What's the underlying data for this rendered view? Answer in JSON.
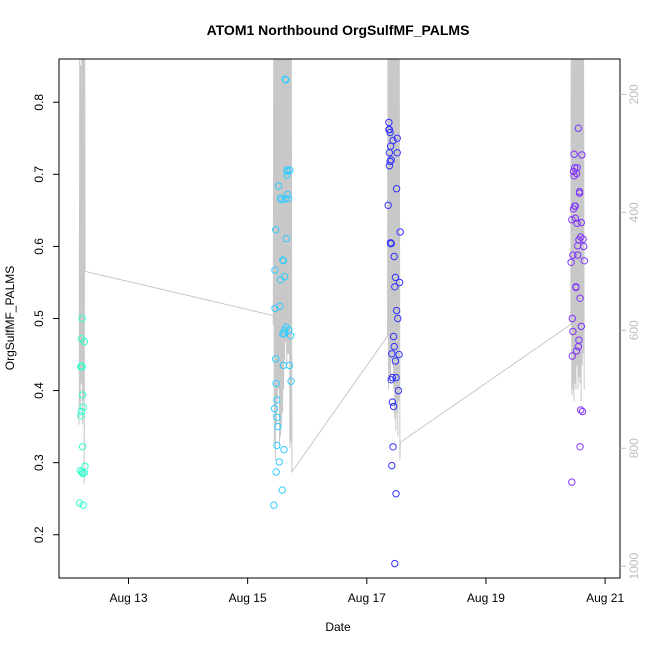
{
  "chart_data": {
    "type": "scatter",
    "title": "ATOM1 Northbound OrgSulfMF_PALMS",
    "xlabel": "Date",
    "ylabel": "OrgSulfMF_PALMS",
    "xlim": [
      "2016-08-11T20:00",
      "2016-08-21T06:00"
    ],
    "ylim": [
      0.14,
      0.86
    ],
    "y2lim": [
      1020,
      140
    ],
    "xticks": [
      {
        "label": "Aug 13",
        "value": "2016-08-13"
      },
      {
        "label": "Aug 15",
        "value": "2016-08-15"
      },
      {
        "label": "Aug 17",
        "value": "2016-08-17"
      },
      {
        "label": "Aug 19",
        "value": "2016-08-19"
      },
      {
        "label": "Aug 21",
        "value": "2016-08-21"
      }
    ],
    "yticks": [
      0.2,
      0.3,
      0.4,
      0.5,
      0.6,
      0.7,
      0.8
    ],
    "y2ticks": [
      200,
      400,
      600,
      800,
      1000
    ],
    "grid": false,
    "legend": "none",
    "colors": {
      "flight1": "#33ffcc",
      "flight2": "#33ccff",
      "flight3": "#3333ff",
      "flight4": "#8033ff",
      "altitude": "#c8c8c8"
    },
    "series": [
      {
        "key": "flight1",
        "x": [
          "2016-08-12T04:19",
          "2016-08-12T04:34",
          "2016-08-12T04:48",
          "2016-08-12T04:48",
          "2016-08-12T05:02",
          "2016-08-12T05:02",
          "2016-08-12T05:02",
          "2016-08-12T05:17",
          "2016-08-12T05:17",
          "2016-08-12T05:17",
          "2016-08-12T05:31",
          "2016-08-12T05:31",
          "2016-08-12T05:31",
          "2016-08-12T05:46",
          "2016-08-12T05:46",
          "2016-08-12T06:14",
          "2016-08-12T06:14",
          "2016-08-12T06:29"
        ],
        "y": [
          0.244,
          0.289,
          0.365,
          0.433,
          0.472,
          0.371,
          0.434,
          0.433,
          0.5,
          0.287,
          0.394,
          0.322,
          0.285,
          0.377,
          0.241,
          0.468,
          0.286,
          0.295
        ]
      },
      {
        "key": "flight2",
        "x": [
          "2016-08-15T10:34",
          "2016-08-15T10:48",
          "2016-08-15T11:02",
          "2016-08-15T11:02",
          "2016-08-15T11:17",
          "2016-08-15T11:17",
          "2016-08-15T11:31",
          "2016-08-15T11:31",
          "2016-08-15T11:46",
          "2016-08-15T11:46",
          "2016-08-15T11:46",
          "2016-08-15T12:14",
          "2016-08-15T12:29",
          "2016-08-15T12:43",
          "2016-08-15T12:58",
          "2016-08-15T13:12",
          "2016-08-15T13:12",
          "2016-08-15T13:41",
          "2016-08-15T13:55",
          "2016-08-15T14:10",
          "2016-08-15T14:10",
          "2016-08-15T14:24",
          "2016-08-15T14:24",
          "2016-08-15T14:38",
          "2016-08-15T14:38",
          "2016-08-15T14:53",
          "2016-08-15T14:53",
          "2016-08-15T15:07",
          "2016-08-15T15:07",
          "2016-08-15T15:22",
          "2016-08-15T15:36",
          "2016-08-15T15:36",
          "2016-08-15T15:50",
          "2016-08-15T15:50",
          "2016-08-15T16:05",
          "2016-08-15T16:05",
          "2016-08-15T16:19",
          "2016-08-15T16:34",
          "2016-08-15T16:48",
          "2016-08-15T17:02",
          "2016-08-15T17:17",
          "2016-08-15T17:31"
        ],
        "y": [
          0.241,
          0.375,
          0.514,
          0.567,
          0.623,
          0.444,
          0.41,
          0.287,
          0.387,
          0.363,
          0.324,
          0.35,
          0.684,
          0.301,
          0.517,
          0.554,
          0.667,
          0.665,
          0.262,
          0.581,
          0.479,
          0.435,
          0.58,
          0.479,
          0.318,
          0.558,
          0.484,
          0.832,
          0.666,
          0.831,
          0.488,
          0.611,
          0.699,
          0.706,
          0.672,
          0.704,
          0.666,
          0.484,
          0.435,
          0.706,
          0.476,
          0.413
        ]
      },
      {
        "key": "flight3",
        "x": [
          "2016-08-17T08:38",
          "2016-08-17T08:53",
          "2016-08-17T08:53",
          "2016-08-17T09:07",
          "2016-08-17T09:07",
          "2016-08-17T09:07",
          "2016-08-17T09:22",
          "2016-08-17T09:22",
          "2016-08-17T09:36",
          "2016-08-17T09:36",
          "2016-08-17T09:36",
          "2016-08-17T09:50",
          "2016-08-17T09:50",
          "2016-08-17T09:50",
          "2016-08-17T10:05",
          "2016-08-17T10:05",
          "2016-08-17T10:19",
          "2016-08-17T10:19",
          "2016-08-17T10:34",
          "2016-08-17T10:34",
          "2016-08-17T10:48",
          "2016-08-17T10:48",
          "2016-08-17T11:02",
          "2016-08-17T11:02",
          "2016-08-17T11:17",
          "2016-08-17T11:17",
          "2016-08-17T11:31",
          "2016-08-17T11:31",
          "2016-08-17T11:46",
          "2016-08-17T11:46",
          "2016-08-17T12:00",
          "2016-08-17T12:00",
          "2016-08-17T12:14",
          "2016-08-17T12:14",
          "2016-08-17T12:29",
          "2016-08-17T12:43",
          "2016-08-17T12:58",
          "2016-08-17T13:12",
          "2016-08-17T13:26"
        ],
        "y": [
          0.657,
          0.772,
          0.762,
          0.762,
          0.73,
          0.712,
          0.758,
          0.718,
          0.739,
          0.604,
          0.605,
          0.72,
          0.604,
          0.415,
          0.451,
          0.296,
          0.384,
          0.418,
          0.747,
          0.322,
          0.378,
          0.475,
          0.461,
          0.586,
          0.16,
          0.544,
          0.441,
          0.557,
          0.418,
          0.257,
          0.511,
          0.68,
          0.73,
          0.75,
          0.5,
          0.4,
          0.45,
          0.55,
          0.62
        ]
      },
      {
        "key": "flight4",
        "x": [
          "2016-08-20T10:19",
          "2016-08-20T10:34",
          "2016-08-20T10:34",
          "2016-08-20T10:48",
          "2016-08-20T10:48",
          "2016-08-20T11:02",
          "2016-08-20T11:02",
          "2016-08-20T11:17",
          "2016-08-20T11:17",
          "2016-08-20T11:31",
          "2016-08-20T11:31",
          "2016-08-20T11:46",
          "2016-08-20T11:46",
          "2016-08-20T12:00",
          "2016-08-20T12:00",
          "2016-08-20T12:14",
          "2016-08-20T12:14",
          "2016-08-20T12:29",
          "2016-08-20T12:29",
          "2016-08-20T12:43",
          "2016-08-20T12:43",
          "2016-08-20T12:58",
          "2016-08-20T12:58",
          "2016-08-20T13:12",
          "2016-08-20T13:12",
          "2016-08-20T13:26",
          "2016-08-20T13:26",
          "2016-08-20T13:41",
          "2016-08-20T13:41",
          "2016-08-20T13:55",
          "2016-08-20T13:55",
          "2016-08-20T14:10",
          "2016-08-20T14:10",
          "2016-08-20T14:24",
          "2016-08-20T14:24",
          "2016-08-20T14:38",
          "2016-08-20T14:53",
          "2016-08-20T15:07",
          "2016-08-20T15:22",
          "2016-08-20T15:36"
        ],
        "y": [
          0.578,
          0.273,
          0.637,
          0.5,
          0.448,
          0.588,
          0.482,
          0.704,
          0.652,
          0.698,
          0.728,
          0.709,
          0.656,
          0.656,
          0.639,
          0.544,
          0.543,
          0.455,
          0.701,
          0.632,
          0.709,
          0.601,
          0.588,
          0.764,
          0.461,
          0.47,
          0.609,
          0.676,
          0.674,
          0.528,
          0.322,
          0.613,
          0.373,
          0.633,
          0.489,
          0.727,
          0.371,
          0.61,
          0.6,
          0.58
        ]
      }
    ],
    "altitude": [
      [
        "2016-08-12T04:00",
        760
      ],
      [
        "2016-08-12T04:10",
        700
      ],
      [
        "2016-08-12T04:20",
        140
      ],
      [
        "2016-08-12T04:35",
        730
      ],
      [
        "2016-08-12T04:45",
        150
      ],
      [
        "2016-08-12T05:00",
        690
      ],
      [
        "2016-08-12T05:10",
        140
      ],
      [
        "2016-08-12T05:25",
        760
      ],
      [
        "2016-08-12T05:35",
        140
      ],
      [
        "2016-08-12T05:50",
        720
      ],
      [
        "2016-08-12T06:00",
        140
      ],
      [
        "2016-08-12T06:10",
        860
      ],
      [
        "2016-08-12T06:20",
        140
      ],
      [
        "2016-08-12T06:30",
        500
      ],
      [
        "2016-08-15T15:20",
        580
      ],
      [
        "2016-08-15T10:20",
        590
      ],
      [
        "2016-08-15T10:30",
        140
      ],
      [
        "2016-08-15T10:45",
        790
      ],
      [
        "2016-08-15T10:55",
        140
      ],
      [
        "2016-08-15T11:10",
        820
      ],
      [
        "2016-08-15T11:20",
        140
      ],
      [
        "2016-08-15T11:35",
        760
      ],
      [
        "2016-08-15T11:45",
        140
      ],
      [
        "2016-08-15T12:00",
        720
      ],
      [
        "2016-08-15T12:10",
        140
      ],
      [
        "2016-08-15T12:25",
        700
      ],
      [
        "2016-08-15T12:35",
        140
      ],
      [
        "2016-08-15T12:50",
        800
      ],
      [
        "2016-08-15T13:00",
        140
      ],
      [
        "2016-08-15T13:15",
        780
      ],
      [
        "2016-08-15T13:25",
        140
      ],
      [
        "2016-08-15T13:40",
        760
      ],
      [
        "2016-08-15T13:50",
        140
      ],
      [
        "2016-08-15T14:05",
        740
      ],
      [
        "2016-08-15T14:15",
        140
      ],
      [
        "2016-08-15T14:30",
        700
      ],
      [
        "2016-08-15T14:40",
        140
      ],
      [
        "2016-08-15T14:55",
        650
      ],
      [
        "2016-08-15T15:05",
        140
      ],
      [
        "2016-08-15T15:20",
        620
      ],
      [
        "2016-08-15T15:30",
        140
      ],
      [
        "2016-08-15T15:45",
        660
      ],
      [
        "2016-08-15T15:55",
        140
      ],
      [
        "2016-08-15T16:10",
        640
      ],
      [
        "2016-08-15T16:20",
        140
      ],
      [
        "2016-08-15T16:35",
        640
      ],
      [
        "2016-08-15T16:45",
        140
      ],
      [
        "2016-08-15T17:00",
        800
      ],
      [
        "2016-08-15T17:10",
        140
      ],
      [
        "2016-08-15T17:25",
        790
      ],
      [
        "2016-08-15T17:35",
        140
      ],
      [
        "2016-08-15T17:50",
        840
      ],
      [
        "2016-08-17T08:20",
        610
      ],
      [
        "2016-08-17T08:30",
        140
      ],
      [
        "2016-08-17T08:45",
        700
      ],
      [
        "2016-08-17T08:55",
        140
      ],
      [
        "2016-08-17T09:10",
        680
      ],
      [
        "2016-08-17T09:20",
        140
      ],
      [
        "2016-08-17T09:35",
        690
      ],
      [
        "2016-08-17T09:45",
        140
      ],
      [
        "2016-08-17T10:00",
        650
      ],
      [
        "2016-08-17T10:10",
        140
      ],
      [
        "2016-08-17T10:25",
        660
      ],
      [
        "2016-08-17T10:35",
        140
      ],
      [
        "2016-08-17T10:50",
        700
      ],
      [
        "2016-08-17T11:00",
        140
      ],
      [
        "2016-08-17T11:15",
        750
      ],
      [
        "2016-08-17T11:25",
        140
      ],
      [
        "2016-08-17T11:40",
        770
      ],
      [
        "2016-08-17T11:50",
        140
      ],
      [
        "2016-08-17T12:05",
        740
      ],
      [
        "2016-08-17T12:15",
        140
      ],
      [
        "2016-08-17T12:30",
        780
      ],
      [
        "2016-08-17T12:40",
        140
      ],
      [
        "2016-08-17T12:55",
        720
      ],
      [
        "2016-08-17T13:05",
        140
      ],
      [
        "2016-08-17T13:20",
        820
      ],
      [
        "2016-08-17T13:30",
        790
      ],
      [
        "2016-08-20T10:10",
        590
      ],
      [
        "2016-08-20T10:20",
        140
      ],
      [
        "2016-08-20T10:35",
        710
      ],
      [
        "2016-08-20T10:45",
        140
      ],
      [
        "2016-08-20T11:00",
        700
      ],
      [
        "2016-08-20T11:10",
        140
      ],
      [
        "2016-08-20T11:25",
        720
      ],
      [
        "2016-08-20T11:35",
        140
      ],
      [
        "2016-08-20T11:50",
        690
      ],
      [
        "2016-08-20T12:00",
        140
      ],
      [
        "2016-08-20T12:15",
        700
      ],
      [
        "2016-08-20T12:25",
        140
      ],
      [
        "2016-08-20T12:40",
        660
      ],
      [
        "2016-08-20T12:50",
        140
      ],
      [
        "2016-08-20T13:05",
        700
      ],
      [
        "2016-08-20T13:15",
        140
      ],
      [
        "2016-08-20T13:30",
        680
      ],
      [
        "2016-08-20T13:40",
        140
      ],
      [
        "2016-08-20T13:55",
        690
      ],
      [
        "2016-08-20T14:05",
        140
      ],
      [
        "2016-08-20T14:20",
        720
      ],
      [
        "2016-08-20T14:30",
        140
      ],
      [
        "2016-08-20T14:45",
        660
      ],
      [
        "2016-08-20T14:55",
        140
      ],
      [
        "2016-08-20T15:10",
        640
      ],
      [
        "2016-08-20T15:20",
        140
      ],
      [
        "2016-08-20T15:35",
        700
      ]
    ]
  }
}
